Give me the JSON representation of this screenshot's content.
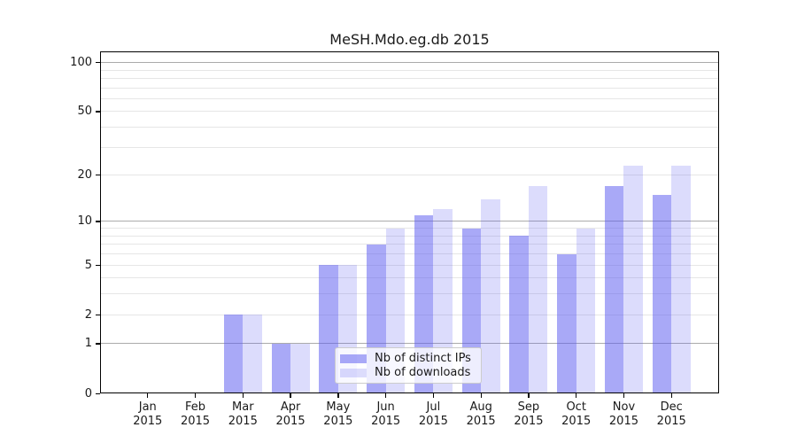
{
  "chart_data": {
    "type": "bar",
    "title": "MeSH.Mdo.eg.db 2015",
    "categories": [
      "Jan",
      "Feb",
      "Mar",
      "Apr",
      "May",
      "Jun",
      "Jul",
      "Aug",
      "Sep",
      "Oct",
      "Nov",
      "Dec"
    ],
    "category_year": "2015",
    "series": [
      {
        "name": "Nb of distinct IPs",
        "color": "rgba(90,90,240,0.52)",
        "values": [
          0,
          0,
          2,
          1,
          5,
          7,
          11,
          9,
          8,
          6,
          17,
          15
        ]
      },
      {
        "name": "Nb of downloads",
        "color": "rgba(90,90,240,0.21)",
        "values": [
          0,
          0,
          2,
          1,
          5,
          9,
          12,
          14,
          17,
          9,
          23,
          23
        ]
      }
    ],
    "y_axis": {
      "scale": "log1p",
      "tick_labels": [
        0,
        1,
        2,
        5,
        10,
        20,
        50,
        100
      ],
      "major_gridlines": [
        1,
        10,
        100
      ],
      "minor_gridlines": [
        2,
        3,
        4,
        5,
        6,
        7,
        8,
        9,
        20,
        30,
        40,
        50,
        60,
        70,
        80,
        90
      ],
      "ylim": [
        0,
        117
      ]
    },
    "legend_position": "lower center",
    "grid": "horizontal",
    "colors": {
      "grid_major": "#ababab",
      "grid_minor": "#e6e6e6",
      "axis": "#000000",
      "text": "#1a1a1a",
      "legend_border": "#cccccc",
      "legend_bg": "rgba(255,255,255,0.8)"
    }
  }
}
